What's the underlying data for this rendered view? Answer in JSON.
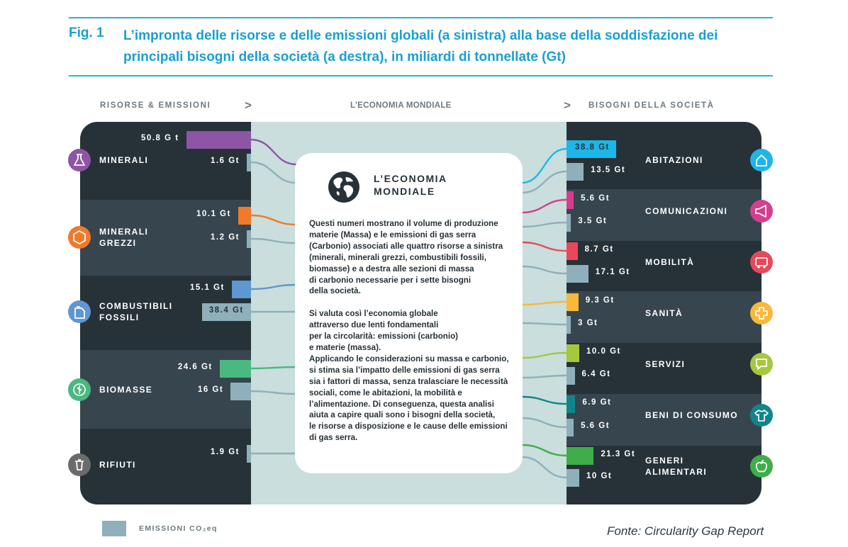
{
  "header": {
    "fig_label": "Fig. 1",
    "title": "L’impronta delle risorse e delle emissioni globali (a sinistra) alla base della soddisfazione dei principali bisogni della società (a destra), in miliardi di tonnellate (Gt)"
  },
  "columns": {
    "left": "RISORSE & EMISSIONI",
    "center": "L’ECONOMIA MONDIALE",
    "right": "BISOGNI DELLA SOCIETÀ",
    "chevron": ">"
  },
  "colors": {
    "minerali": "#8e54a6",
    "minerali_grezzi": "#f07a2a",
    "combustibili": "#5e97d2",
    "biomasse": "#49b881",
    "rifiuti": "#6b6b6b",
    "emissioni": "#8fb0ba",
    "abitazioni": "#1db6e8",
    "comunicazioni": "#d33f8d",
    "mobilita": "#e8485a",
    "sanita": "#f7b93a",
    "servizi": "#a5c83c",
    "beni": "#12858c",
    "alimentari": "#3fae49"
  },
  "center_box": {
    "globe_icon": "globe-icon",
    "title_line1": "L’ECONOMIA",
    "title_line2": "MONDIALE",
    "text": "Questi numeri mostrano il volume di produzione\n materie (Massa) e le emissioni di gas serra\n(Carbonio) associati alle quattro risorse a sinistra\n(minerali, minerali grezzi, combustibili fossili,\nbiomasse) e a destra alle sezioni di massa\ndi carbonio necessarie per i sette bisogni\ndella società.\n\nSi valuta così l’economia globale\nattraverso due lenti fondamentali\nper la circolarità: emissioni (carbonio)\ne materie (massa).\nApplicando le considerazioni su massa e carbonio,\nsi stima sia l’impatto delle emissioni di gas serra\nsia i fattori di massa, senza tralasciare le necessità\nsociali, come le abitazioni, la mobilità e\nl’alimentazione. Di conseguenza, questa analisi\naiuta a capire quali sono i bisogni della società,\n le risorse a disposizione e le cause delle emissioni\ndi gas serra."
  },
  "legend": {
    "label": "EMISSIONI CO₂eq"
  },
  "source": "Fonte: Circularity Gap Report",
  "chart_data": {
    "type": "bar",
    "unit": "Gt",
    "series": [
      {
        "name": "",
        "color_key": "category"
      },
      {
        "name": "EMISSIONI CO₂eq",
        "color_key": "emissioni"
      }
    ],
    "left": [
      {
        "name": "MINERALI",
        "lines": [
          "MINERALI"
        ],
        "icon": "flask-icon",
        "color_key": "minerali",
        "material": 50.8,
        "material_label": "50.8 G t",
        "emission": 1.6,
        "emission_label": "1.6 Gt"
      },
      {
        "name": "MINERALI GREZZI",
        "lines": [
          "MINERALI",
          "GREZZI"
        ],
        "icon": "hexagon-icon",
        "color_key": "minerali_grezzi",
        "material": 10.1,
        "material_label": "10.1 Gt",
        "emission": 1.2,
        "emission_label": "1.2 Gt"
      },
      {
        "name": "COMBUSTIBILI FOSSILI",
        "lines": [
          "COMBUSTIBILI",
          "FOSSILI"
        ],
        "icon": "fuel-can-icon",
        "color_key": "combustibili",
        "material": 15.1,
        "material_label": "15.1 Gt",
        "emission": 38.4,
        "emission_label": "38.4 Gt"
      },
      {
        "name": "BIOMASSE",
        "lines": [
          "BIOMASSE"
        ],
        "icon": "leaf-icon",
        "color_key": "biomasse",
        "material": 24.6,
        "material_label": "24.6 Gt",
        "emission": 16,
        "emission_label": "16 Gt"
      },
      {
        "name": "RIFIUTI",
        "lines": [
          "RIFIUTI"
        ],
        "icon": "trash-icon",
        "color_key": "rifiuti",
        "material": null,
        "material_label": "",
        "emission": 1.9,
        "emission_label": "1.9 Gt"
      }
    ],
    "right": [
      {
        "name": "ABITAZIONI",
        "lines": [
          "ABITAZIONI"
        ],
        "icon": "house-icon",
        "color_key": "abitazioni",
        "material": 38.8,
        "material_label": "38.8 Gt",
        "emission": 13.5,
        "emission_label": "13.5 Gt"
      },
      {
        "name": "COMUNICAZIONI",
        "lines": [
          "COMUNICAZIONI"
        ],
        "icon": "megaphone-icon",
        "color_key": "comunicazioni",
        "material": 5.6,
        "material_label": "5.6 Gt",
        "emission": 3.5,
        "emission_label": "3.5 Gt"
      },
      {
        "name": "MOBILITÀ",
        "lines": [
          "MOBILITÀ"
        ],
        "icon": "bus-icon",
        "color_key": "mobilita",
        "material": 8.7,
        "material_label": "8.7 Gt",
        "emission": 17.1,
        "emission_label": "17.1 Gt"
      },
      {
        "name": "SANITÀ",
        "lines": [
          "SANITÀ"
        ],
        "icon": "cross-icon",
        "color_key": "sanita",
        "material": 9.3,
        "material_label": "9.3 Gt",
        "emission": 3,
        "emission_label": "3 Gt"
      },
      {
        "name": "SERVIZI",
        "lines": [
          "SERVIZI"
        ],
        "icon": "chat-icon",
        "color_key": "servizi",
        "material": 10.0,
        "material_label": "10.0 Gt",
        "emission": 6.4,
        "emission_label": "6.4 Gt"
      },
      {
        "name": "BENI DI CONSUMO",
        "lines": [
          "BENI DI CONSUMO"
        ],
        "icon": "tshirt-icon",
        "color_key": "beni",
        "material": 6.9,
        "material_label": "6.9 Gt",
        "emission": 5.6,
        "emission_label": "5.6 Gt"
      },
      {
        "name": "GENERI ALIMENTARI",
        "lines": [
          "GENERI",
          "ALIMENTARI"
        ],
        "icon": "apple-icon",
        "color_key": "alimentari",
        "material": 21.3,
        "material_label": "21.3 Gt",
        "emission": 10,
        "emission_label": "10 Gt"
      }
    ]
  }
}
